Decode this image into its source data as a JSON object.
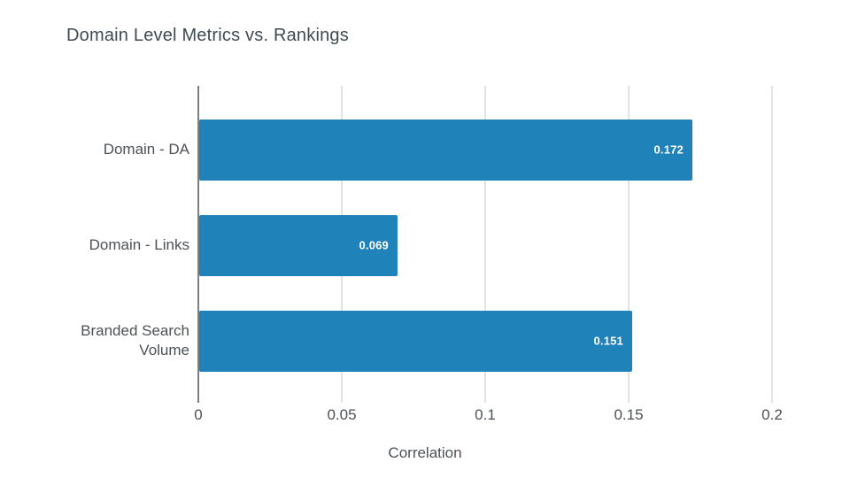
{
  "chart_data": {
    "type": "bar",
    "orientation": "horizontal",
    "title": "Domain Level Metrics vs. Rankings",
    "categories": [
      "Domain - DA",
      "Domain - Links",
      "Branded Search Volume"
    ],
    "values": [
      0.172,
      0.069,
      0.151
    ],
    "value_labels": [
      "0.172",
      "0.069",
      "0.151"
    ],
    "xlabel": "Correlation",
    "ylabel": "",
    "xlim": [
      0,
      0.2
    ],
    "xticks": [
      0,
      0.05,
      0.1,
      0.15,
      0.2
    ],
    "xtick_labels": [
      "0",
      "0.05",
      "0.1",
      "0.15",
      "0.2"
    ],
    "grid": true,
    "legend": false,
    "value_labels_position": "inside-end",
    "colors": {
      "bar": "#1f82b8",
      "value_label": "#ffffff",
      "title": "#3e4a52",
      "axis_text": "#4b5156",
      "gridline": "#e3e3e3",
      "zero_line": "#7d7d7d",
      "background": "#ffffff"
    }
  }
}
